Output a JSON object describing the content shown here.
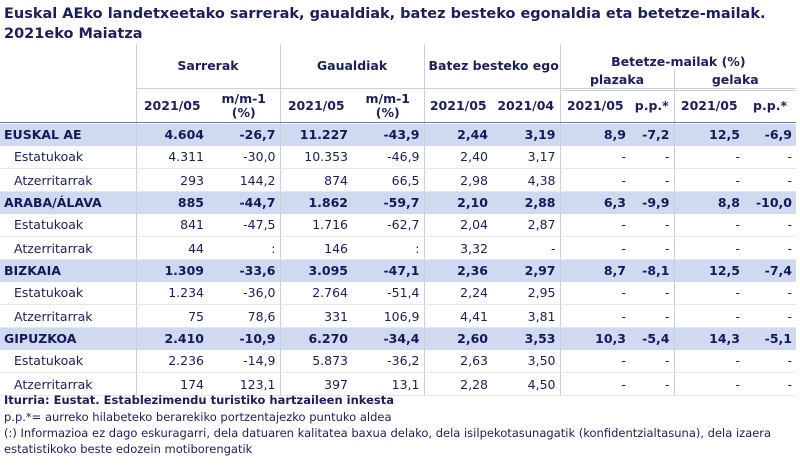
{
  "title": "Euskal AEko landetxeetako sarrerak, gaualdiak, batez besteko egonaldia eta betetze-mailak. 2021eko Maiatza",
  "headers": {
    "sarrerak": "Sarrerak",
    "gaualdiak": "Gaualdiak",
    "egonaldia": "Batez besteko egonaldia",
    "betetze": "Betetze-mailak (%)",
    "plazaka": "plazaka",
    "gelaka": "gelaka",
    "y2021_05": "2021/05",
    "y2021_04": "2021/04",
    "mm1": "m/m-1 (%)",
    "pp": "p.p.*"
  },
  "rows": [
    {
      "type": "region",
      "label": "EUSKAL AE",
      "c": [
        "4.604",
        "-26,7",
        "11.227",
        "-43,9",
        "2,44",
        "3,19",
        "8,9",
        "-7,2",
        "12,5",
        "-6,9"
      ]
    },
    {
      "type": "sub",
      "label": "Estatukoak",
      "c": [
        "4.311",
        "-30,0",
        "10.353",
        "-46,9",
        "2,40",
        "3,17",
        "-",
        "-",
        "-",
        "-"
      ]
    },
    {
      "type": "sub",
      "label": "Atzerritarrak",
      "c": [
        "293",
        "144,2",
        "874",
        "66,5",
        "2,98",
        "4,38",
        "-",
        "-",
        "-",
        "-"
      ]
    },
    {
      "type": "region",
      "label": "ARABA/ÁLAVA",
      "c": [
        "885",
        "-44,7",
        "1.862",
        "-59,7",
        "2,10",
        "2,88",
        "6,3",
        "-9,9",
        "8,8",
        "-10,0"
      ]
    },
    {
      "type": "sub",
      "label": "Estatukoak",
      "c": [
        "841",
        "-47,5",
        "1.716",
        "-62,7",
        "2,04",
        "2,87",
        "-",
        "-",
        "-",
        "-"
      ]
    },
    {
      "type": "sub",
      "label": "Atzerritarrak",
      "c": [
        "44",
        ":",
        "146",
        ":",
        "3,32",
        "-",
        "-",
        "-",
        "-",
        "-"
      ]
    },
    {
      "type": "region",
      "label": "BIZKAIA",
      "c": [
        "1.309",
        "-33,6",
        "3.095",
        "-47,1",
        "2,36",
        "2,97",
        "8,7",
        "-8,1",
        "12,5",
        "-7,4"
      ]
    },
    {
      "type": "sub",
      "label": "Estatukoak",
      "c": [
        "1.234",
        "-36,0",
        "2.764",
        "-51,4",
        "2,24",
        "2,95",
        "-",
        "-",
        "-",
        "-"
      ]
    },
    {
      "type": "sub",
      "label": "Atzerritarrak",
      "c": [
        "75",
        "78,6",
        "331",
        "106,9",
        "4,41",
        "3,81",
        "-",
        "-",
        "-",
        "-"
      ]
    },
    {
      "type": "region",
      "label": "GIPUZKOA",
      "c": [
        "2.410",
        "-10,9",
        "6.270",
        "-34,4",
        "2,60",
        "3,53",
        "10,3",
        "-5,4",
        "14,3",
        "-5,1"
      ]
    },
    {
      "type": "sub",
      "label": "Estatukoak",
      "c": [
        "2.236",
        "-14,9",
        "5.873",
        "-36,2",
        "2,63",
        "3,50",
        "-",
        "-",
        "-",
        "-"
      ]
    },
    {
      "type": "sub",
      "label": "Atzerritarrak",
      "c": [
        "174",
        "123,1",
        "397",
        "13,1",
        "2,28",
        "4,50",
        "-",
        "-",
        "-",
        "-"
      ]
    }
  ],
  "footer": {
    "source": "Iturria: Eustat. Establezimendu turistiko hartzaileen inkesta",
    "note1": "p.p.*= aurreko  hilabeteko berarekiko portzentajezko puntuko aldea",
    "note2": "(:) Informazioa ez dago eskuragarri, dela datuaren kalitatea baxua delako, dela isilpekotasunagatik (konfidentzialtasuna), dela izaera estatistikoko beste edozein motiborengatik"
  }
}
